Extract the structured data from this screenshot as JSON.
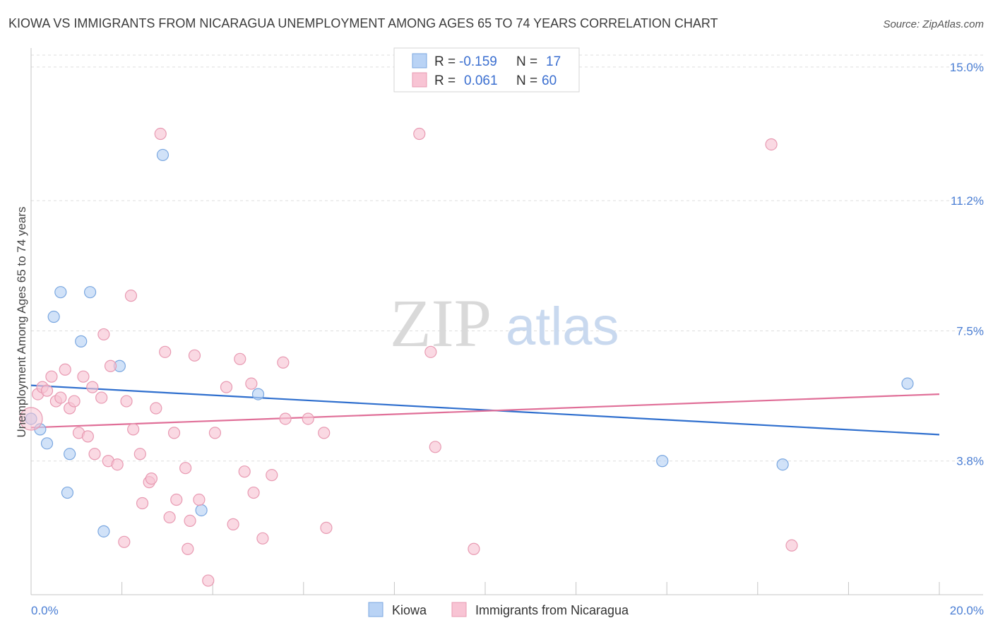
{
  "header": {
    "title": "KIOWA VS IMMIGRANTS FROM NICARAGUA UNEMPLOYMENT AMONG AGES 65 TO 74 YEARS CORRELATION CHART",
    "source": "Source: ZipAtlas.com"
  },
  "watermark": {
    "zip": "ZIP",
    "atlas": "atlas"
  },
  "stats": {
    "kiowa": {
      "r_label": "R =",
      "r": "-0.159",
      "n_label": "N =",
      "n": "17"
    },
    "nicaragua": {
      "r_label": "R =",
      "r": "0.061",
      "n_label": "N =",
      "n": "60"
    }
  },
  "colors": {
    "kiowa_fill": "#b9d3f5",
    "kiowa_stroke": "#7aa7e0",
    "kiowa_line": "#2f6fce",
    "nicaragua_fill": "#f8c4d4",
    "nicaragua_stroke": "#e89ab2",
    "nicaragua_line": "#e06f98",
    "grid": "#dddddd",
    "tick_text": "#4a7ed4"
  },
  "chart_data": {
    "type": "scatter",
    "title": "KIOWA VS IMMIGRANTS FROM NICARAGUA UNEMPLOYMENT AMONG AGES 65 TO 74 YEARS CORRELATION CHART",
    "xlabel": "",
    "ylabel": "Unemployment Among Ages 65 to 74 years",
    "xlim": [
      0,
      20
    ],
    "ylim": [
      0,
      15.5
    ],
    "x_tick_labels": [
      {
        "value": 0,
        "label": "0.0%"
      },
      {
        "value": 20,
        "label": "20.0%"
      }
    ],
    "y_ticks": [
      {
        "value": 3.8,
        "label": "3.8%"
      },
      {
        "value": 7.5,
        "label": "7.5%"
      },
      {
        "value": 11.2,
        "label": "11.2%"
      },
      {
        "value": 15.0,
        "label": "15.0%"
      }
    ],
    "x_minor_ticks": [
      0,
      2,
      4,
      6,
      8,
      10,
      12,
      14,
      16,
      18,
      20
    ],
    "series": [
      {
        "name": "Kiowa",
        "points": [
          [
            0.0,
            5.0
          ],
          [
            0.2,
            4.7
          ],
          [
            0.35,
            4.3
          ],
          [
            0.5,
            7.9
          ],
          [
            0.65,
            8.6
          ],
          [
            0.85,
            4.0
          ],
          [
            0.8,
            2.9
          ],
          [
            1.1,
            7.2
          ],
          [
            1.3,
            8.6
          ],
          [
            1.6,
            1.8
          ],
          [
            1.95,
            6.5
          ],
          [
            2.9,
            12.5
          ],
          [
            3.75,
            2.4
          ],
          [
            5.0,
            5.7
          ],
          [
            13.9,
            3.8
          ],
          [
            16.55,
            3.7
          ],
          [
            19.3,
            6.0
          ]
        ],
        "trend": {
          "x": [
            0.0,
            20.0
          ],
          "y": [
            5.95,
            4.55
          ]
        }
      },
      {
        "name": "Immigrants from Nicaragua",
        "points": [
          [
            0.0,
            5.0
          ],
          [
            0.15,
            5.7
          ],
          [
            0.25,
            5.9
          ],
          [
            0.35,
            5.8
          ],
          [
            0.45,
            6.2
          ],
          [
            0.55,
            5.5
          ],
          [
            0.65,
            5.6
          ],
          [
            0.75,
            6.4
          ],
          [
            0.85,
            5.3
          ],
          [
            0.95,
            5.5
          ],
          [
            1.05,
            4.6
          ],
          [
            1.15,
            6.2
          ],
          [
            1.25,
            4.5
          ],
          [
            1.35,
            5.9
          ],
          [
            1.4,
            4.0
          ],
          [
            1.55,
            5.6
          ],
          [
            1.6,
            7.4
          ],
          [
            1.7,
            3.8
          ],
          [
            1.75,
            6.5
          ],
          [
            1.9,
            3.7
          ],
          [
            2.05,
            1.5
          ],
          [
            2.1,
            5.5
          ],
          [
            2.2,
            8.5
          ],
          [
            2.25,
            4.7
          ],
          [
            2.4,
            4.0
          ],
          [
            2.45,
            2.6
          ],
          [
            2.6,
            3.2
          ],
          [
            2.65,
            3.3
          ],
          [
            2.75,
            5.3
          ],
          [
            2.85,
            13.1
          ],
          [
            2.95,
            6.9
          ],
          [
            3.05,
            2.2
          ],
          [
            3.15,
            4.6
          ],
          [
            3.2,
            2.7
          ],
          [
            3.4,
            3.6
          ],
          [
            3.45,
            1.3
          ],
          [
            3.5,
            2.1
          ],
          [
            3.6,
            6.8
          ],
          [
            3.7,
            2.7
          ],
          [
            3.9,
            0.4
          ],
          [
            4.05,
            4.6
          ],
          [
            4.3,
            5.9
          ],
          [
            4.45,
            2.0
          ],
          [
            4.6,
            6.7
          ],
          [
            4.7,
            3.5
          ],
          [
            4.85,
            6.0
          ],
          [
            4.9,
            2.9
          ],
          [
            5.1,
            1.6
          ],
          [
            5.3,
            3.4
          ],
          [
            5.55,
            6.6
          ],
          [
            5.6,
            5.0
          ],
          [
            6.1,
            5.0
          ],
          [
            6.45,
            4.6
          ],
          [
            6.5,
            1.9
          ],
          [
            8.55,
            13.1
          ],
          [
            8.8,
            6.9
          ],
          [
            8.9,
            4.2
          ],
          [
            9.75,
            1.3
          ],
          [
            16.3,
            12.8
          ],
          [
            16.75,
            1.4
          ]
        ],
        "trend": {
          "x": [
            0.0,
            20.0
          ],
          "y": [
            4.75,
            5.7
          ]
        }
      }
    ],
    "legend": {
      "placement": "top-center",
      "entries": [
        "Kiowa",
        "Immigrants from Nicaragua"
      ]
    }
  }
}
